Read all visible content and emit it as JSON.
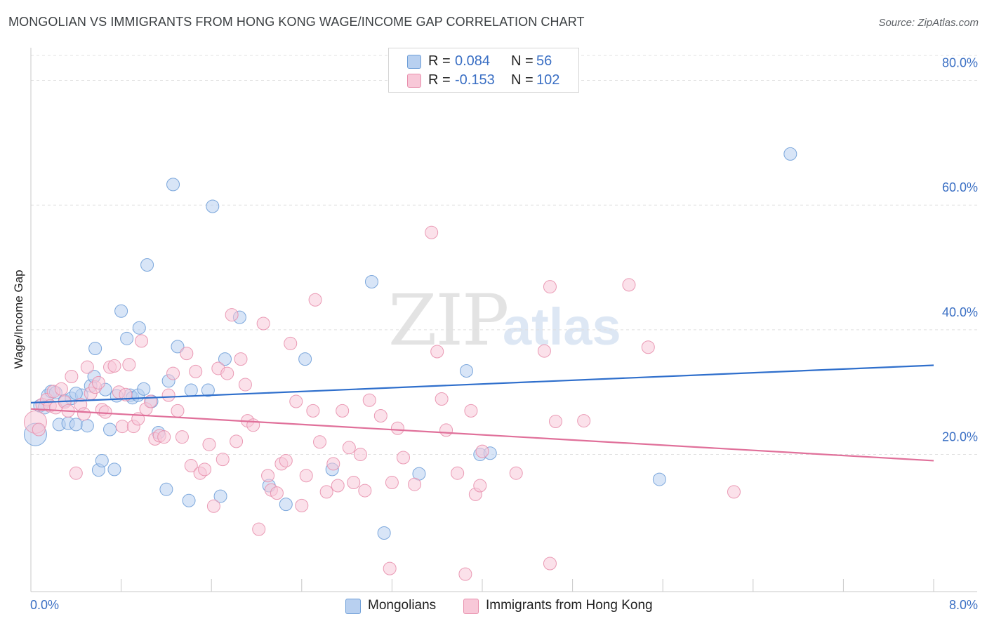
{
  "title": "MONGOLIAN VS IMMIGRANTS FROM HONG KONG WAGE/INCOME GAP CORRELATION CHART",
  "source": "Source: ZipAtlas.com",
  "watermark": {
    "zip": "ZIP",
    "atlas": "atlas"
  },
  "stats": [
    {
      "r_label": "R =",
      "r_value": "0.084",
      "n_label": "N =",
      "n_value": "56",
      "color": "#b8d0f0",
      "border": "#6f9fd8"
    },
    {
      "r_label": "R =",
      "r_value": "-0.153",
      "n_label": "N =",
      "n_value": "102",
      "color": "#f8c8d8",
      "border": "#e890ad"
    }
  ],
  "legend": [
    {
      "label": "Mongolians",
      "color": "#b8d0f0",
      "border": "#6f9fd8"
    },
    {
      "label": "Immigrants from Hong Kong",
      "color": "#f8c8d8",
      "border": "#e890ad"
    }
  ],
  "chart_data": {
    "type": "scatter",
    "title": "MONGOLIAN VS IMMIGRANTS FROM HONG KONG WAGE/INCOME GAP CORRELATION CHART",
    "xlabel": "",
    "ylabel": "Wage/Income Gap",
    "xlim": [
      0,
      8
    ],
    "ylim": [
      -2,
      84
    ],
    "x_tick_labels": [
      {
        "value": 0,
        "label": "0.0%"
      },
      {
        "value": 8,
        "label": "8.0%"
      }
    ],
    "x_minor_ticks": [
      0.8,
      1.6,
      2.4,
      3.2,
      4.0,
      4.8,
      5.6,
      6.4,
      7.2,
      8.0
    ],
    "y_ticks": [
      {
        "value": 20,
        "label": "20.0%"
      },
      {
        "value": 40,
        "label": "40.0%"
      },
      {
        "value": 60,
        "label": "60.0%"
      },
      {
        "value": 80,
        "label": "80.0%"
      }
    ],
    "grid": true,
    "series": [
      {
        "name": "Mongolians",
        "color": "#6f9fd8",
        "fill": "#b8d0f0",
        "trend": {
          "x": [
            0,
            8
          ],
          "y": [
            28.3,
            34.3
          ],
          "color": "#2f6fcc"
        },
        "points": [
          [
            0.04,
            23.2,
            16
          ],
          [
            0.08,
            27.8,
            9
          ],
          [
            0.12,
            27.5,
            9
          ],
          [
            0.15,
            29.5,
            9
          ],
          [
            0.18,
            30.1,
            9
          ],
          [
            0.22,
            29.9,
            9
          ],
          [
            0.25,
            24.8,
            9
          ],
          [
            0.3,
            28.6,
            9
          ],
          [
            0.33,
            25.0,
            9
          ],
          [
            0.36,
            29.0,
            9
          ],
          [
            0.4,
            24.8,
            9
          ],
          [
            0.45,
            29.5,
            9
          ],
          [
            0.5,
            24.6,
            9
          ],
          [
            0.53,
            31.0,
            9
          ],
          [
            0.56,
            32.5,
            9
          ],
          [
            0.57,
            37.0,
            9
          ],
          [
            0.6,
            17.5,
            9
          ],
          [
            0.63,
            19.0,
            9
          ],
          [
            0.66,
            30.4,
            9
          ],
          [
            0.7,
            24.0,
            9
          ],
          [
            0.74,
            17.6,
            9
          ],
          [
            0.76,
            29.4,
            9
          ],
          [
            0.8,
            43.0,
            9
          ],
          [
            0.85,
            38.6,
            9
          ],
          [
            0.88,
            29.5,
            9
          ],
          [
            0.9,
            29.1,
            9
          ],
          [
            0.95,
            29.5,
            9
          ],
          [
            0.96,
            40.3,
            9
          ],
          [
            1.0,
            30.5,
            9
          ],
          [
            1.03,
            50.4,
            9
          ],
          [
            1.07,
            28.5,
            9
          ],
          [
            1.13,
            23.5,
            9
          ],
          [
            1.2,
            14.4,
            9
          ],
          [
            1.22,
            31.8,
            9
          ],
          [
            1.26,
            63.3,
            9
          ],
          [
            1.3,
            37.3,
            9
          ],
          [
            1.4,
            12.6,
            9
          ],
          [
            1.42,
            30.3,
            9
          ],
          [
            1.57,
            30.3,
            9
          ],
          [
            1.61,
            59.8,
            9
          ],
          [
            1.68,
            13.3,
            9
          ],
          [
            1.72,
            35.3,
            9
          ],
          [
            1.85,
            42.0,
            9
          ],
          [
            2.11,
            15.0,
            9
          ],
          [
            2.26,
            12.0,
            9
          ],
          [
            2.43,
            35.3,
            9
          ],
          [
            2.67,
            17.6,
            9
          ],
          [
            3.02,
            47.7,
            9
          ],
          [
            3.13,
            7.4,
            9
          ],
          [
            3.44,
            16.9,
            9
          ],
          [
            3.86,
            33.4,
            9
          ],
          [
            3.98,
            20.0,
            9
          ],
          [
            4.07,
            20.2,
            9
          ],
          [
            5.57,
            16.0,
            9
          ],
          [
            6.73,
            68.2,
            9
          ],
          [
            0.4,
            29.8,
            9
          ]
        ]
      },
      {
        "name": "Immigrants from Hong Kong",
        "color": "#e890ad",
        "fill": "#f8c8d8",
        "trend": {
          "x": [
            0,
            8
          ],
          "y": [
            27.3,
            19.0
          ],
          "color": "#e0709a"
        },
        "points": [
          [
            0.04,
            25.2,
            16
          ],
          [
            0.07,
            24.0,
            9
          ],
          [
            0.1,
            28.0,
            9
          ],
          [
            0.14,
            28.8,
            9
          ],
          [
            0.17,
            27.8,
            9
          ],
          [
            0.2,
            30.1,
            9
          ],
          [
            0.22,
            27.5,
            9
          ],
          [
            0.27,
            30.5,
            9
          ],
          [
            0.3,
            28.4,
            9
          ],
          [
            0.33,
            27.0,
            9
          ],
          [
            0.36,
            32.5,
            9
          ],
          [
            0.4,
            17.0,
            9
          ],
          [
            0.44,
            28.0,
            9
          ],
          [
            0.47,
            26.5,
            9
          ],
          [
            0.5,
            34.0,
            9
          ],
          [
            0.53,
            29.8,
            9
          ],
          [
            0.57,
            30.8,
            9
          ],
          [
            0.6,
            31.5,
            9
          ],
          [
            0.63,
            27.2,
            9
          ],
          [
            0.66,
            26.8,
            9
          ],
          [
            0.7,
            34.0,
            9
          ],
          [
            0.74,
            34.2,
            9
          ],
          [
            0.78,
            30.0,
            9
          ],
          [
            0.81,
            24.5,
            9
          ],
          [
            0.84,
            29.6,
            9
          ],
          [
            0.87,
            34.4,
            9
          ],
          [
            0.91,
            24.5,
            9
          ],
          [
            0.95,
            25.7,
            9
          ],
          [
            0.98,
            38.2,
            9
          ],
          [
            1.02,
            27.3,
            9
          ],
          [
            1.06,
            28.5,
            9
          ],
          [
            1.1,
            22.5,
            9
          ],
          [
            1.14,
            23.0,
            9
          ],
          [
            1.18,
            22.8,
            9
          ],
          [
            1.22,
            29.5,
            9
          ],
          [
            1.26,
            33.0,
            9
          ],
          [
            1.3,
            27.0,
            9
          ],
          [
            1.34,
            22.8,
            9
          ],
          [
            1.38,
            36.2,
            9
          ],
          [
            1.42,
            18.2,
            9
          ],
          [
            1.46,
            33.3,
            9
          ],
          [
            1.5,
            17.0,
            9
          ],
          [
            1.54,
            17.6,
            9
          ],
          [
            1.58,
            21.6,
            9
          ],
          [
            1.62,
            11.7,
            9
          ],
          [
            1.66,
            33.8,
            9
          ],
          [
            1.7,
            19.2,
            9
          ],
          [
            1.74,
            33.0,
            9
          ],
          [
            1.78,
            42.4,
            9
          ],
          [
            1.82,
            22.1,
            9
          ],
          [
            1.86,
            35.3,
            9
          ],
          [
            1.9,
            31.2,
            9
          ],
          [
            1.92,
            25.4,
            9
          ],
          [
            1.97,
            24.7,
            9
          ],
          [
            2.02,
            8.0,
            9
          ],
          [
            2.06,
            41.0,
            9
          ],
          [
            2.1,
            16.6,
            9
          ],
          [
            2.13,
            14.3,
            9
          ],
          [
            2.18,
            13.8,
            9
          ],
          [
            2.22,
            18.5,
            9
          ],
          [
            2.26,
            19.0,
            9
          ],
          [
            2.3,
            37.8,
            9
          ],
          [
            2.35,
            28.5,
            9
          ],
          [
            2.4,
            11.8,
            9
          ],
          [
            2.44,
            16.6,
            9
          ],
          [
            2.5,
            27.0,
            9
          ],
          [
            2.52,
            44.8,
            9
          ],
          [
            2.56,
            22.0,
            9
          ],
          [
            2.62,
            14.0,
            9
          ],
          [
            2.68,
            18.5,
            9
          ],
          [
            2.72,
            15.0,
            9
          ],
          [
            2.76,
            27.0,
            9
          ],
          [
            2.82,
            21.1,
            9
          ],
          [
            2.86,
            15.5,
            9
          ],
          [
            2.92,
            20.0,
            9
          ],
          [
            2.96,
            14.2,
            9
          ],
          [
            3.0,
            28.7,
            9
          ],
          [
            3.1,
            26.2,
            9
          ],
          [
            3.2,
            15.5,
            9
          ],
          [
            3.3,
            19.5,
            9
          ],
          [
            3.4,
            15.2,
            9
          ],
          [
            3.55,
            55.6,
            9
          ],
          [
            3.6,
            36.5,
            9
          ],
          [
            3.64,
            28.9,
            9
          ],
          [
            3.68,
            23.9,
            9
          ],
          [
            3.78,
            17.0,
            9
          ],
          [
            3.9,
            27.0,
            9
          ],
          [
            3.94,
            13.6,
            9
          ],
          [
            3.98,
            15.0,
            9
          ],
          [
            4.3,
            17.0,
            9
          ],
          [
            4.55,
            36.6,
            9
          ],
          [
            4.6,
            46.9,
            9
          ],
          [
            4.65,
            25.3,
            9
          ],
          [
            4.9,
            25.4,
            9
          ],
          [
            5.3,
            47.2,
            9
          ],
          [
            5.47,
            37.2,
            9
          ],
          [
            6.23,
            14.0,
            9
          ],
          [
            3.18,
            1.7,
            9
          ],
          [
            3.85,
            0.8,
            9
          ],
          [
            4.6,
            2.5,
            9
          ],
          [
            4.0,
            20.5,
            9
          ],
          [
            3.25,
            24.2,
            9
          ]
        ]
      }
    ]
  }
}
